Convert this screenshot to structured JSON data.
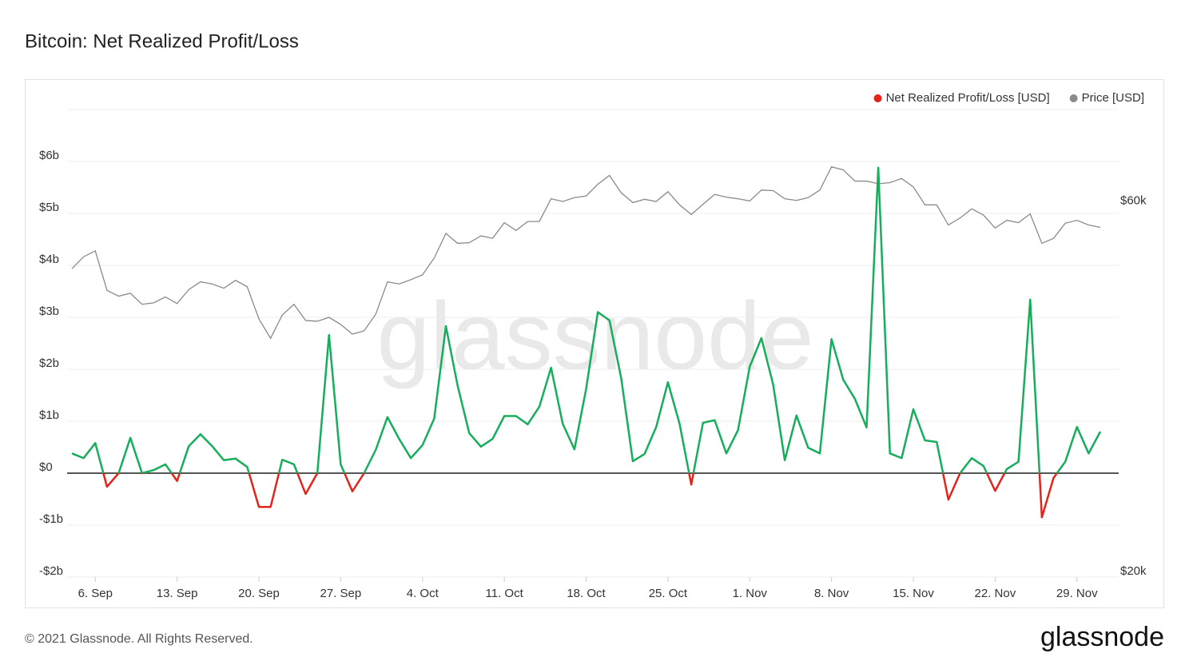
{
  "chart_data": {
    "type": "line",
    "title": "Bitcoin: Net Realized Profit/Loss",
    "watermark": "glassnode",
    "categories": [
      null,
      null,
      "6. Sep",
      null,
      null,
      null,
      null,
      null,
      null,
      "13. Sep",
      null,
      null,
      null,
      null,
      null,
      null,
      "20. Sep",
      null,
      null,
      null,
      null,
      null,
      null,
      "27. Sep",
      null,
      null,
      null,
      null,
      null,
      null,
      "4. Oct",
      null,
      null,
      null,
      null,
      null,
      null,
      "11. Oct",
      null,
      null,
      null,
      null,
      null,
      null,
      "18. Oct",
      null,
      null,
      null,
      null,
      null,
      null,
      "25. Oct",
      null,
      null,
      null,
      null,
      null,
      null,
      "1. Nov",
      null,
      null,
      null,
      null,
      null,
      null,
      "8. Nov",
      null,
      null,
      null,
      null,
      null,
      null,
      "15. Nov",
      null,
      null,
      null,
      null,
      null,
      null,
      "22. Nov",
      null,
      null,
      null,
      null,
      null,
      null,
      "29. Nov",
      null,
      null
    ],
    "series": [
      {
        "name": "Net Realized Profit/Loss [USD]",
        "color": "#e3241b",
        "positive_color": "#16ad5b",
        "values": [
          0.38,
          0.29,
          0.58,
          -0.26,
          0,
          0.68,
          0,
          0.06,
          0.17,
          -0.15,
          0.52,
          0.75,
          0.52,
          0.25,
          0.28,
          0.12,
          -0.65,
          -0.65,
          0.26,
          0.17,
          -0.4,
          0,
          2.66,
          0.17,
          -0.35,
          0,
          0.45,
          1.08,
          0.66,
          0.29,
          0.54,
          1.05,
          2.83,
          1.69,
          0.77,
          0.51,
          0.66,
          1.1,
          1.1,
          0.94,
          1.28,
          2.03,
          0.95,
          0.46,
          1.62,
          3.1,
          2.94,
          1.83,
          0.23,
          0.37,
          0.89,
          1.75,
          0.95,
          -0.22,
          0.97,
          1.02,
          0.38,
          0.83,
          2.05,
          2.6,
          1.71,
          0.25,
          1.11,
          0.49,
          0.38,
          2.58,
          1.8,
          1.43,
          0.88,
          5.88,
          0.38,
          0.29,
          1.23,
          0.63,
          0.6,
          -0.51,
          0,
          0.29,
          0.14,
          -0.34,
          0.08,
          0.22,
          3.34,
          -0.85,
          -0.09,
          0.22,
          0.89,
          0.38,
          0.8
        ]
      },
      {
        "name": "Price [USD]",
        "color": "#8a8a8a",
        "axis": "y2",
        "values": [
          49900,
          51700,
          52600,
          46800,
          46000,
          46400,
          44900,
          45100,
          45900,
          45000,
          46900,
          48000,
          47700,
          47100,
          48200,
          47300,
          43000,
          40600,
          43500,
          44900,
          42800,
          42700,
          43200,
          42300,
          41100,
          41500,
          43600,
          48000,
          47700,
          48300,
          49000,
          51500,
          55400,
          53800,
          53900,
          55000,
          54600,
          57200,
          55900,
          57400,
          57400,
          61400,
          60900,
          61600,
          61900,
          64100,
          65800,
          62500,
          60700,
          61300,
          60900,
          62700,
          60300,
          58600,
          60400,
          62200,
          61700,
          61400,
          61000,
          63000,
          62900,
          61400,
          61100,
          61600,
          63000,
          67500,
          66900,
          64700,
          64700,
          64200,
          64400,
          65200,
          63600,
          60300,
          60300,
          56800,
          58000,
          59600,
          58500,
          56300,
          57600,
          57200,
          58700,
          53800,
          54600,
          57100,
          57600,
          56800,
          56400
        ]
      }
    ],
    "ylim": [
      -2,
      7
    ],
    "yticks": [
      {
        "value": -2,
        "label": "-$2b"
      },
      {
        "value": -1,
        "label": "-$1b"
      },
      {
        "value": 0,
        "label": "$0"
      },
      {
        "value": 1,
        "label": "$1b"
      },
      {
        "value": 2,
        "label": "$2b"
      },
      {
        "value": 3,
        "label": "$3b"
      },
      {
        "value": 4,
        "label": "$4b"
      },
      {
        "value": 5,
        "label": "$5b"
      },
      {
        "value": 6,
        "label": "$6b"
      }
    ],
    "y2lim": [
      20000,
      80000
    ],
    "y2ticks": [
      {
        "value": 20000,
        "label": "$20k"
      },
      {
        "value": 60000,
        "label": "$60k"
      }
    ],
    "y2scale": "log",
    "grid": true,
    "legend": "top-right"
  },
  "footer": "© 2021 Glassnode. All Rights Reserved.",
  "logo": "glassnode"
}
